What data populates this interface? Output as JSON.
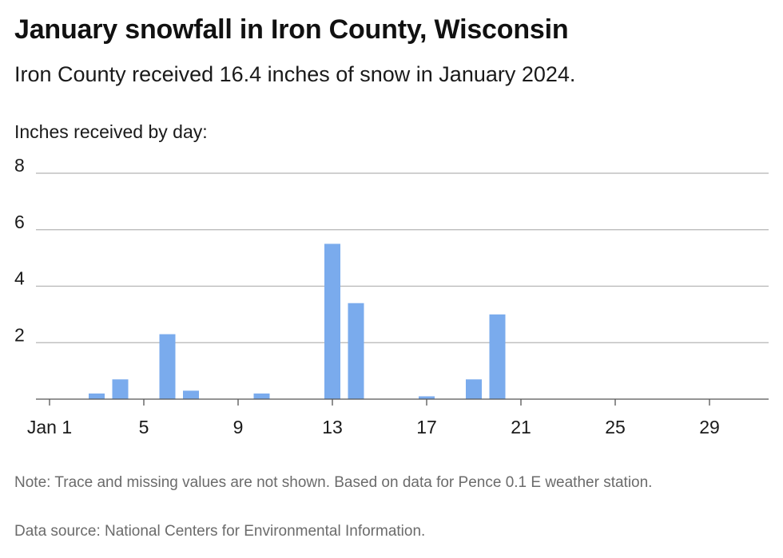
{
  "header": {
    "title": "January snowfall in Iron County, Wisconsin",
    "subtitle": "Iron County received 16.4 inches of snow in January 2024."
  },
  "footer": {
    "note": "Note: Trace and missing values are not shown. Based on data for Pence 0.1 E weather station.",
    "source": "Data source: National Centers for Environmental Information."
  },
  "colors": {
    "bar": "#7aabed",
    "grid": "#b5b5b5",
    "axis": "#555555"
  },
  "chart_data": {
    "type": "bar",
    "title": "January snowfall in Iron County, Wisconsin",
    "subtitle": "Iron County received 16.4 inches of snow in January 2024.",
    "ylabel": "Inches received by day:",
    "xlabel": "",
    "xlim": [
      1,
      31
    ],
    "ylim": [
      0,
      8
    ],
    "y_ticks": [
      2,
      4,
      6,
      8
    ],
    "x_ticks": [
      {
        "value": 1,
        "label": "Jan 1"
      },
      {
        "value": 5,
        "label": "5"
      },
      {
        "value": 9,
        "label": "9"
      },
      {
        "value": 13,
        "label": "13"
      },
      {
        "value": 17,
        "label": "17"
      },
      {
        "value": 21,
        "label": "21"
      },
      {
        "value": 25,
        "label": "25"
      },
      {
        "value": 29,
        "label": "29"
      }
    ],
    "grid": true,
    "legend": "none",
    "series": [
      {
        "x": [
          3,
          4,
          6,
          7,
          10,
          13,
          14,
          17,
          19,
          20
        ],
        "values": [
          0.2,
          0.7,
          2.3,
          0.3,
          0.2,
          5.5,
          3.4,
          0.1,
          0.7,
          3.0
        ]
      }
    ]
  }
}
